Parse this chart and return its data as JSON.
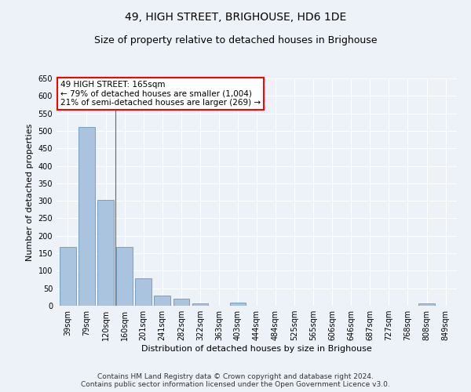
{
  "title": "49, HIGH STREET, BRIGHOUSE, HD6 1DE",
  "subtitle": "Size of property relative to detached houses in Brighouse",
  "xlabel": "Distribution of detached houses by size in Brighouse",
  "ylabel": "Number of detached properties",
  "bar_color": "#aac4e0",
  "bar_edge_color": "#6699bb",
  "categories": [
    "39sqm",
    "79sqm",
    "120sqm",
    "160sqm",
    "201sqm",
    "241sqm",
    "282sqm",
    "322sqm",
    "363sqm",
    "403sqm",
    "444sqm",
    "484sqm",
    "525sqm",
    "565sqm",
    "606sqm",
    "646sqm",
    "687sqm",
    "727sqm",
    "768sqm",
    "808sqm",
    "849sqm"
  ],
  "values": [
    168,
    510,
    302,
    168,
    78,
    30,
    20,
    7,
    0,
    8,
    0,
    0,
    0,
    0,
    0,
    0,
    0,
    0,
    0,
    7,
    0
  ],
  "ylim": [
    0,
    650
  ],
  "yticks": [
    0,
    50,
    100,
    150,
    200,
    250,
    300,
    350,
    400,
    450,
    500,
    550,
    600,
    650
  ],
  "annotation_box_text": "49 HIGH STREET: 165sqm\n← 79% of detached houses are smaller (1,004)\n21% of semi-detached houses are larger (269) →",
  "footer_line1": "Contains HM Land Registry data © Crown copyright and database right 2024.",
  "footer_line2": "Contains public sector information licensed under the Open Government Licence v3.0.",
  "bg_color": "#edf2f9",
  "plot_bg_color": "#edf2f9",
  "grid_color": "#ffffff",
  "vline_x": 2.5,
  "title_fontsize": 10,
  "subtitle_fontsize": 9,
  "tick_fontsize": 7,
  "ylabel_fontsize": 8,
  "xlabel_fontsize": 8,
  "footer_fontsize": 6.5,
  "ann_fontsize": 7.5
}
